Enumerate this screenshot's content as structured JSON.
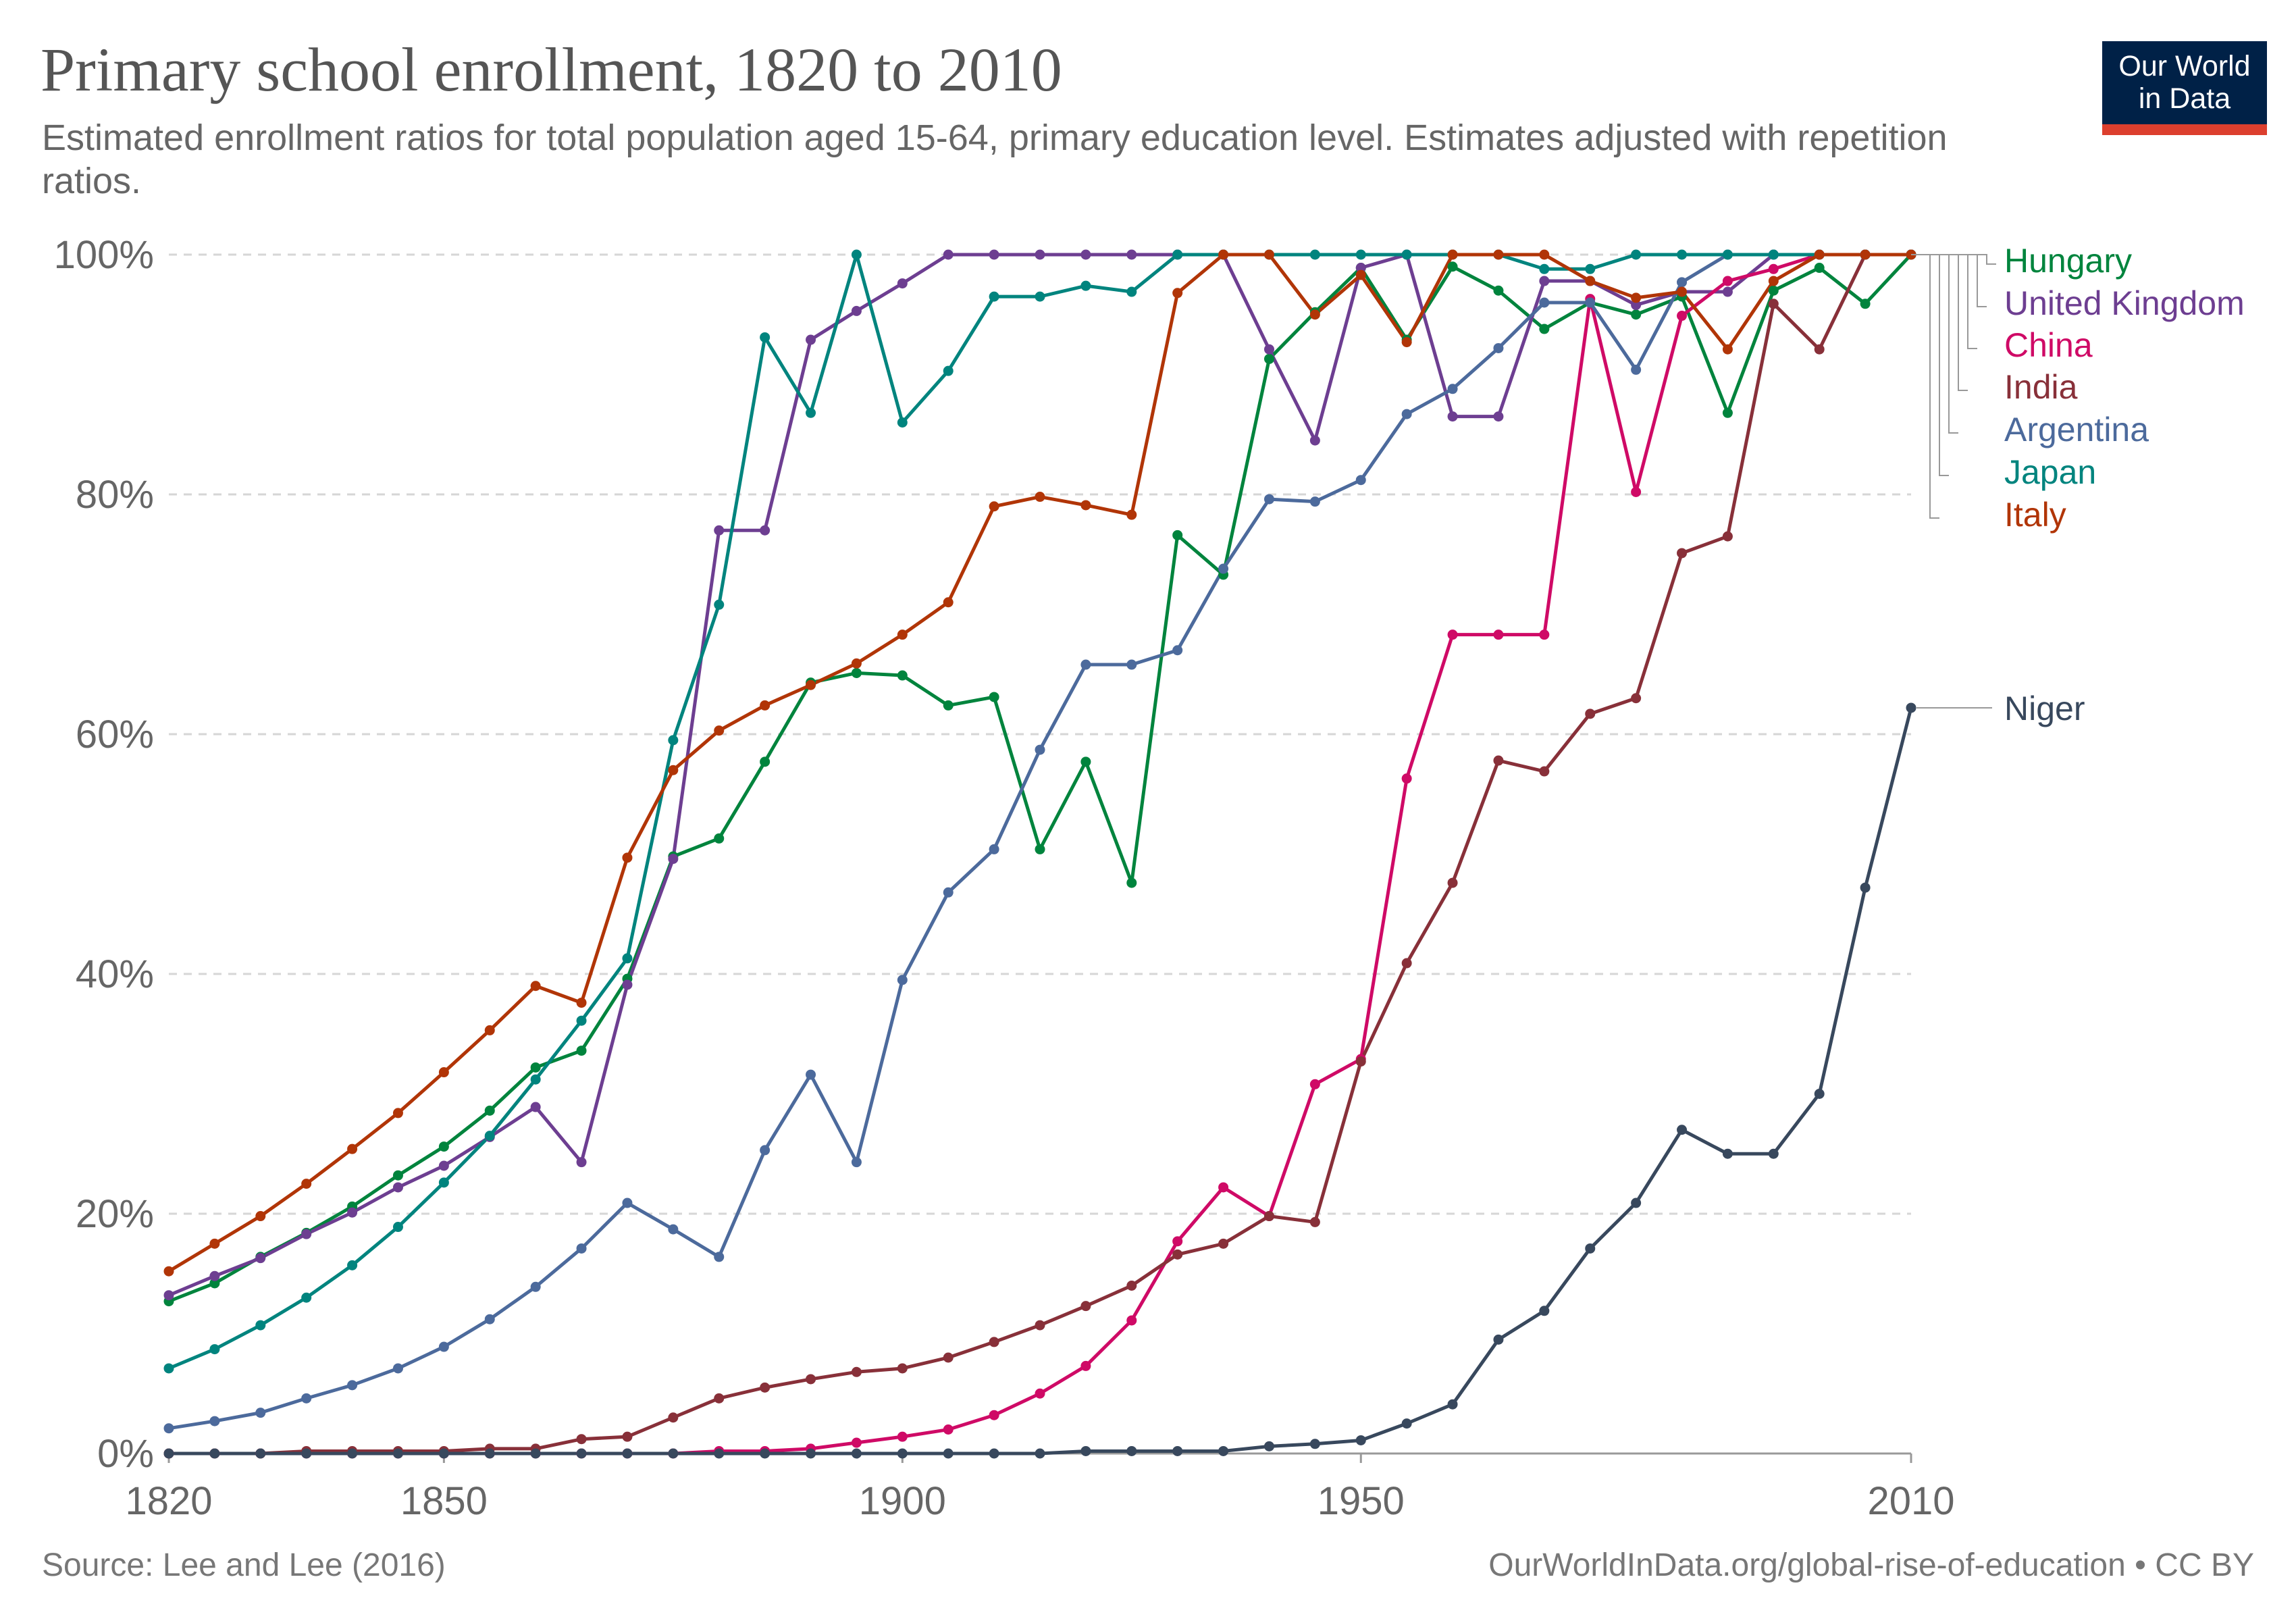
{
  "header": {
    "title": "Primary school enrollment, 1820 to 2010",
    "subtitle": "Estimated enrollment ratios for total population aged 15-64, primary education level. Estimates adjusted with repetition ratios."
  },
  "logo": {
    "line1": "Our World",
    "line2": "in Data",
    "bg_color": "#002147",
    "accent_color": "#dc3f2e"
  },
  "footer": {
    "source": "Source: Lee and Lee (2016)",
    "license": "OurWorldInData.org/global-rise-of-education • CC BY"
  },
  "chart_data": {
    "type": "line",
    "title": "Primary school enrollment, 1820 to 2010",
    "xlabel": "",
    "ylabel": "",
    "x_ticks": [
      1820,
      1850,
      1900,
      1950,
      2010
    ],
    "y_ticks": [
      "0%",
      "20%",
      "40%",
      "60%",
      "80%",
      "100%"
    ],
    "xlim": [
      1820,
      2010
    ],
    "ylim": [
      0,
      100
    ],
    "grid": "horizontal dashed",
    "legend": "right, labels at line ends",
    "x": [
      1820,
      1825,
      1830,
      1835,
      1840,
      1845,
      1850,
      1855,
      1860,
      1865,
      1870,
      1875,
      1880,
      1885,
      1890,
      1895,
      1900,
      1905,
      1910,
      1915,
      1920,
      1925,
      1930,
      1935,
      1940,
      1945,
      1950,
      1955,
      1960,
      1965,
      1970,
      1975,
      1980,
      1985,
      1990,
      1995,
      2000,
      2005,
      2010
    ],
    "series": [
      {
        "name": "Hungary",
        "color": "#00843d",
        "values": [
          12.7,
          14.2,
          16.4,
          18.4,
          20.6,
          23.2,
          25.6,
          28.6,
          32.2,
          33.6,
          39.6,
          49.8,
          51.3,
          57.7,
          64.3,
          65.1,
          64.9,
          62.4,
          63.1,
          50.4,
          57.7,
          47.6,
          76.6,
          73.3,
          91.3,
          95.2,
          98.9,
          92.9,
          99.0,
          97.0,
          93.8,
          96.0,
          95.0,
          96.5,
          86.8,
          97.0,
          98.9,
          95.9,
          100
        ]
      },
      {
        "name": "United Kingdom",
        "color": "#6d3e91",
        "values": [
          13.2,
          14.8,
          16.3,
          18.3,
          20.1,
          22.2,
          24.0,
          26.4,
          28.9,
          24.3,
          39.1,
          49.6,
          77.0,
          77.0,
          92.9,
          95.3,
          97.6,
          100,
          100,
          100,
          100,
          100,
          100,
          100,
          92.1,
          84.5,
          98.9,
          100,
          86.5,
          86.5,
          97.8,
          97.8,
          95.8,
          96.9,
          96.9,
          100,
          100,
          100,
          100
        ]
      },
      {
        "name": "China",
        "color": "#cf0a66",
        "values": [
          0,
          0,
          0,
          0,
          0,
          0,
          0,
          0,
          0,
          0,
          0,
          0,
          0.2,
          0.2,
          0.4,
          0.9,
          1.4,
          2.0,
          3.2,
          5.0,
          7.3,
          11.1,
          17.7,
          22.2,
          19.8,
          30.8,
          32.9,
          56.3,
          68.3,
          68.3,
          68.3,
          96.3,
          80.2,
          94.9,
          97.8,
          98.8,
          100,
          100,
          100
        ]
      },
      {
        "name": "India",
        "color": "#883039",
        "values": [
          0,
          0,
          0,
          0.2,
          0.2,
          0.2,
          0.2,
          0.4,
          0.4,
          1.2,
          1.4,
          3.0,
          4.6,
          5.5,
          6.2,
          6.8,
          7.1,
          8.0,
          9.3,
          10.7,
          12.3,
          14.0,
          16.6,
          17.5,
          19.8,
          19.3,
          32.7,
          40.9,
          47.6,
          57.8,
          56.9,
          61.7,
          63.0,
          75.1,
          76.5,
          95.9,
          92.1,
          100,
          100
        ]
      },
      {
        "name": "Argentina",
        "color": "#4c6a9c",
        "values": [
          2.1,
          2.7,
          3.4,
          4.6,
          5.7,
          7.1,
          8.9,
          11.2,
          13.9,
          17.1,
          20.9,
          18.7,
          16.4,
          25.3,
          31.6,
          24.3,
          39.5,
          46.8,
          50.4,
          58.7,
          65.8,
          65.8,
          67.0,
          73.8,
          79.6,
          79.4,
          81.2,
          86.7,
          88.8,
          92.2,
          96.0,
          96.0,
          90.4,
          97.7,
          100,
          100,
          100,
          100,
          100
        ]
      },
      {
        "name": "Japan",
        "color": "#00847e",
        "values": [
          7.1,
          8.7,
          10.7,
          13.0,
          15.7,
          18.9,
          22.6,
          26.5,
          31.2,
          36.1,
          41.3,
          59.5,
          70.8,
          93.1,
          86.8,
          100,
          86.0,
          90.3,
          96.5,
          96.5,
          97.4,
          96.9,
          100,
          100,
          100,
          100,
          100,
          100,
          100,
          100,
          98.8,
          98.8,
          100,
          100,
          100,
          100,
          100,
          100,
          100
        ]
      },
      {
        "name": "Italy",
        "color": "#b13507",
        "values": [
          15.2,
          17.5,
          19.8,
          22.5,
          25.4,
          28.4,
          31.8,
          35.3,
          39.0,
          37.6,
          49.7,
          57.0,
          60.3,
          62.4,
          64.1,
          65.9,
          68.3,
          71.0,
          79.0,
          79.8,
          79.1,
          78.3,
          96.8,
          100,
          100,
          95.0,
          98.3,
          92.7,
          100,
          100,
          100,
          97.8,
          96.4,
          96.9,
          92.1,
          97.8,
          100,
          100,
          100
        ]
      },
      {
        "name": "Niger",
        "color": "#38485d",
        "values": [
          0,
          0,
          0,
          0,
          0,
          0,
          0,
          0,
          0,
          0,
          0,
          0,
          0,
          0,
          0,
          0,
          0,
          0,
          0,
          0,
          0.2,
          0.2,
          0.2,
          0.2,
          0.6,
          0.8,
          1.1,
          2.5,
          4.1,
          9.5,
          11.9,
          17.1,
          20.9,
          27.0,
          25.0,
          25.0,
          30.0,
          47.2,
          62.2
        ]
      }
    ]
  }
}
